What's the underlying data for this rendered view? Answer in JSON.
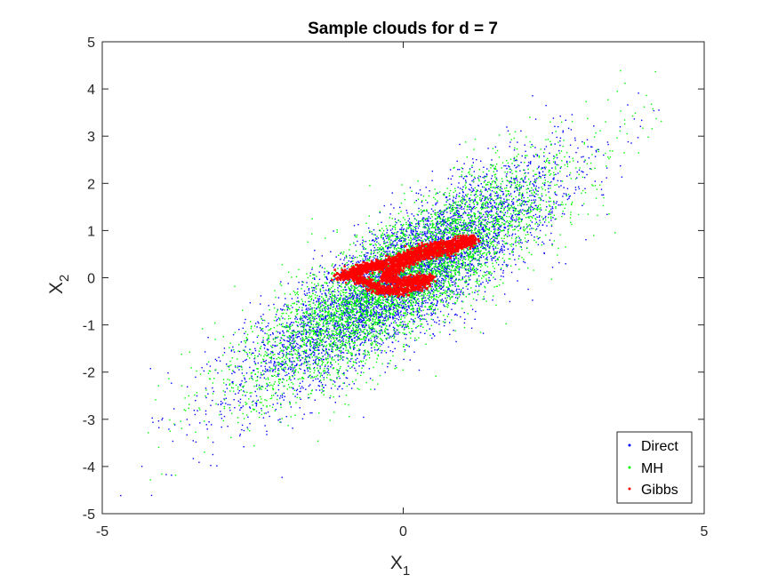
{
  "chart_data": {
    "type": "scatter",
    "title": "Sample clouds for d = 7",
    "xlabel": {
      "base": "X",
      "sub": "1"
    },
    "ylabel": {
      "base": "X",
      "sub": "2"
    },
    "xlim": [
      -5,
      5
    ],
    "ylim": [
      -5,
      5
    ],
    "xticks": [
      -5,
      0,
      5
    ],
    "yticks": [
      -5,
      -4,
      -3,
      -2,
      -1,
      0,
      1,
      2,
      3,
      4,
      5
    ],
    "grid": false,
    "legend_position": "bottom-right",
    "distribution": {
      "mean": [
        0,
        0
      ],
      "std_x1": 1.3,
      "std_x2": 1.2,
      "correlation": 0.85
    },
    "series": [
      {
        "name": "Direct",
        "color": "#0000ff",
        "marker": "dot",
        "n_points": 5000
      },
      {
        "name": "MH",
        "color": "#00ff00",
        "marker": "dot",
        "n_points": 5000
      },
      {
        "name": "Gibbs",
        "color": "#ff0000",
        "marker": "dot",
        "path": [
          [
            -1.1,
            0.0
          ],
          [
            -0.8,
            0.15
          ],
          [
            -0.5,
            0.25
          ],
          [
            -0.2,
            0.35
          ],
          [
            0.1,
            0.5
          ],
          [
            0.4,
            0.62
          ],
          [
            0.7,
            0.72
          ],
          [
            1.0,
            0.8
          ],
          [
            1.15,
            0.78
          ],
          [
            0.9,
            0.62
          ],
          [
            0.6,
            0.55
          ],
          [
            0.3,
            0.45
          ],
          [
            0.0,
            0.3
          ],
          [
            -0.2,
            0.15
          ],
          [
            -0.3,
            0.0
          ],
          [
            -0.1,
            -0.1
          ],
          [
            0.15,
            -0.05
          ],
          [
            0.45,
            0.0
          ],
          [
            0.2,
            -0.2
          ],
          [
            -0.1,
            -0.3
          ],
          [
            -0.4,
            -0.25
          ],
          [
            -0.6,
            -0.1
          ],
          [
            -0.9,
            0.05
          ],
          [
            -0.6,
            0.25
          ],
          [
            -0.3,
            0.2
          ]
        ]
      }
    ]
  }
}
